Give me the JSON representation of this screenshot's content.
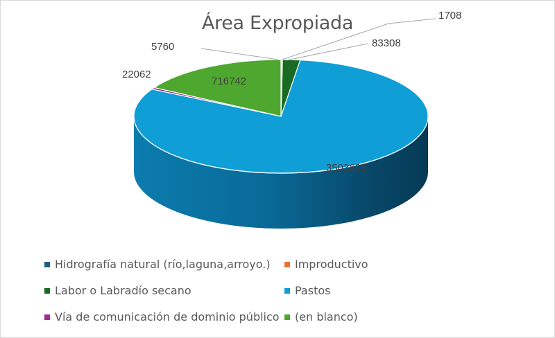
{
  "chart_data": {
    "type": "pie",
    "subtype": "3d-pie",
    "title": "Área Expropiada",
    "categories": [
      "Hidrografía natural (río,laguna,arroyo.)",
      "Improductivo",
      "Labor o Labradío secano",
      "Pastos",
      "Vía de comunicación de dominio público",
      "(en blanco)"
    ],
    "values": [
      1708,
      5760,
      83308,
      3503698,
      22062,
      716742
    ],
    "data_labels": [
      "1708",
      "5760",
      "83308",
      "3503698",
      "22062",
      "716742"
    ],
    "colors": [
      "#1f5f7f",
      "#e97132",
      "#196b24",
      "#0f9ed5",
      "#a02b93",
      "#4ea72e"
    ],
    "legend_position": "bottom"
  },
  "legend": {
    "items": [
      {
        "label": "Hidrografía natural (río,laguna,arroyo.)",
        "color": "#1f5f7f"
      },
      {
        "label": "Improductivo",
        "color": "#e97132"
      },
      {
        "label": "Labor o Labradío secano",
        "color": "#196b24"
      },
      {
        "label": "Pastos",
        "color": "#0f9ed5"
      },
      {
        "label": "Vía de comunicación de dominio público",
        "color": "#a02b93"
      },
      {
        "label": "(en blanco)",
        "color": "#4ea72e"
      }
    ]
  }
}
